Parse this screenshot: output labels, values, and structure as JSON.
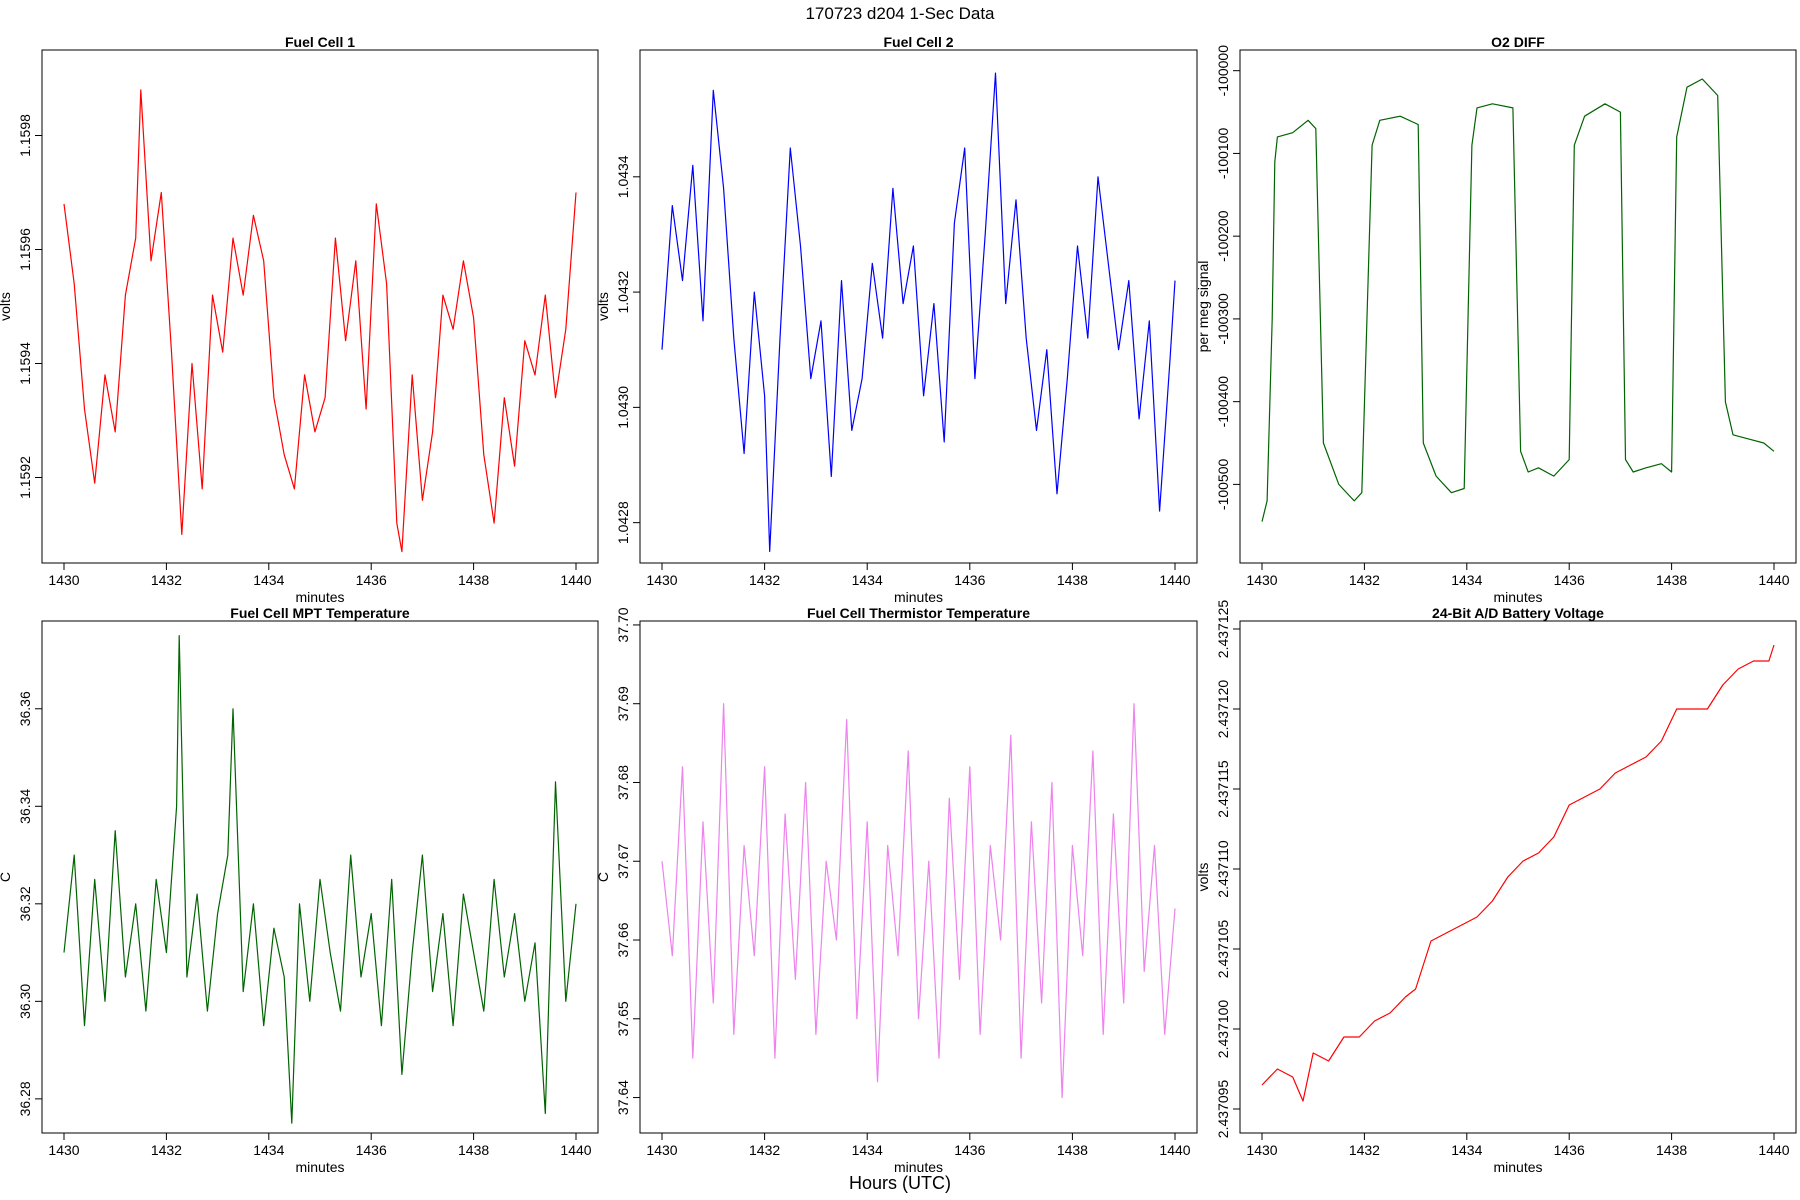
{
  "suptitle": "170723   d204   1-Sec Data",
  "footer_label": "Hours (UTC)",
  "chart_data": [
    {
      "type": "line",
      "title": "Fuel Cell 1",
      "xlabel": "minutes",
      "ylabel": "volts",
      "color": "#ff0000",
      "xlim": [
        1430,
        1440
      ],
      "ylim": [
        1.15905,
        1.15995
      ],
      "xticks": [
        1430,
        1432,
        1434,
        1436,
        1438,
        1440
      ],
      "xtick_labels": [
        "1430",
        "1432",
        "1434",
        "1436",
        "1438",
        "1440"
      ],
      "yticks": [
        1.1592,
        1.1594,
        1.1596,
        1.1598
      ],
      "ytick_labels": [
        "1.1592",
        "1.1594",
        "1.1596",
        "1.1598"
      ],
      "x": [
        1430.0,
        1430.2,
        1430.4,
        1430.6,
        1430.8,
        1431.0,
        1431.2,
        1431.4,
        1431.5,
        1431.7,
        1431.9,
        1432.1,
        1432.3,
        1432.5,
        1432.7,
        1432.9,
        1433.1,
        1433.3,
        1433.5,
        1433.7,
        1433.9,
        1434.1,
        1434.3,
        1434.5,
        1434.7,
        1434.9,
        1435.1,
        1435.3,
        1435.5,
        1435.7,
        1435.9,
        1436.1,
        1436.3,
        1436.5,
        1436.6,
        1436.8,
        1437.0,
        1437.2,
        1437.4,
        1437.6,
        1437.8,
        1438.0,
        1438.2,
        1438.4,
        1438.6,
        1438.8,
        1439.0,
        1439.2,
        1439.4,
        1439.6,
        1439.8,
        1440.0
      ],
      "y": [
        1.15968,
        1.15954,
        1.15932,
        1.15919,
        1.15938,
        1.15928,
        1.15952,
        1.15962,
        1.15988,
        1.15958,
        1.1597,
        1.15942,
        1.1591,
        1.1594,
        1.15918,
        1.15952,
        1.15942,
        1.15962,
        1.15952,
        1.15966,
        1.15958,
        1.15934,
        1.15924,
        1.15918,
        1.15938,
        1.15928,
        1.15934,
        1.15962,
        1.15944,
        1.15958,
        1.15932,
        1.15968,
        1.15954,
        1.15912,
        1.15907,
        1.15938,
        1.15916,
        1.15928,
        1.15952,
        1.15946,
        1.15958,
        1.15948,
        1.15924,
        1.15912,
        1.15934,
        1.15922,
        1.15944,
        1.15938,
        1.15952,
        1.15934,
        1.15946,
        1.1597
      ]
    },
    {
      "type": "line",
      "title": "Fuel Cell 2",
      "xlabel": "minutes",
      "ylabel": "volts",
      "color": "#0000ff",
      "xlim": [
        1430,
        1440
      ],
      "ylim": [
        1.04273,
        1.04362
      ],
      "xticks": [
        1430,
        1432,
        1434,
        1436,
        1438,
        1440
      ],
      "xtick_labels": [
        "1430",
        "1432",
        "1434",
        "1436",
        "1438",
        "1440"
      ],
      "yticks": [
        1.0428,
        1.043,
        1.0432,
        1.0434
      ],
      "ytick_labels": [
        "1.0428",
        "1.0430",
        "1.0432",
        "1.0434"
      ],
      "x": [
        1430.0,
        1430.2,
        1430.4,
        1430.6,
        1430.8,
        1431.0,
        1431.2,
        1431.4,
        1431.6,
        1431.8,
        1432.0,
        1432.1,
        1432.3,
        1432.5,
        1432.7,
        1432.9,
        1433.1,
        1433.3,
        1433.5,
        1433.7,
        1433.9,
        1434.1,
        1434.3,
        1434.5,
        1434.7,
        1434.9,
        1435.1,
        1435.3,
        1435.5,
        1435.7,
        1435.9,
        1436.1,
        1436.3,
        1436.5,
        1436.7,
        1436.9,
        1437.1,
        1437.3,
        1437.5,
        1437.7,
        1437.9,
        1438.1,
        1438.3,
        1438.5,
        1438.7,
        1438.9,
        1439.1,
        1439.3,
        1439.5,
        1439.7,
        1439.9,
        1440.0
      ],
      "y": [
        1.0431,
        1.04335,
        1.04322,
        1.04342,
        1.04315,
        1.04355,
        1.04338,
        1.04312,
        1.04292,
        1.0432,
        1.04302,
        1.04275,
        1.04312,
        1.04345,
        1.04328,
        1.04305,
        1.04315,
        1.04288,
        1.04322,
        1.04296,
        1.04305,
        1.04325,
        1.04312,
        1.04338,
        1.04318,
        1.04328,
        1.04302,
        1.04318,
        1.04294,
        1.04332,
        1.04345,
        1.04305,
        1.0433,
        1.04358,
        1.04318,
        1.04336,
        1.04312,
        1.04296,
        1.0431,
        1.04285,
        1.04305,
        1.04328,
        1.04312,
        1.0434,
        1.04325,
        1.0431,
        1.04322,
        1.04298,
        1.04315,
        1.04282,
        1.04308,
        1.04322
      ]
    },
    {
      "type": "line",
      "title": "O2 DIFF",
      "xlabel": "minutes",
      "ylabel": "per meg signal",
      "color": "#006400",
      "xlim": [
        1430,
        1440
      ],
      "ylim": [
        -100595,
        -99975
      ],
      "xticks": [
        1430,
        1432,
        1434,
        1436,
        1438,
        1440
      ],
      "xtick_labels": [
        "1430",
        "1432",
        "1434",
        "1436",
        "1438",
        "1440"
      ],
      "yticks": [
        -100500,
        -100400,
        -100300,
        -100200,
        -100100,
        -100000
      ],
      "ytick_labels": [
        "-100500",
        "-100400",
        "-100300",
        "-100200",
        "-100100",
        "-100000"
      ],
      "x": [
        1430.0,
        1430.1,
        1430.2,
        1430.25,
        1430.3,
        1430.6,
        1430.9,
        1431.05,
        1431.2,
        1431.5,
        1431.8,
        1431.95,
        1432.15,
        1432.3,
        1432.7,
        1433.05,
        1433.15,
        1433.4,
        1433.7,
        1433.95,
        1434.1,
        1434.2,
        1434.5,
        1434.9,
        1435.05,
        1435.2,
        1435.4,
        1435.7,
        1436.0,
        1436.1,
        1436.3,
        1436.7,
        1437.0,
        1437.1,
        1437.25,
        1437.5,
        1437.8,
        1438.0,
        1438.1,
        1438.3,
        1438.6,
        1438.9,
        1439.05,
        1439.2,
        1439.5,
        1439.8,
        1440.0
      ],
      "y": [
        -100545,
        -100520,
        -100300,
        -100110,
        -100080,
        -100075,
        -100060,
        -100070,
        -100450,
        -100500,
        -100520,
        -100510,
        -100090,
        -100060,
        -100055,
        -100065,
        -100450,
        -100490,
        -100510,
        -100505,
        -100090,
        -100045,
        -100040,
        -100045,
        -100460,
        -100485,
        -100480,
        -100490,
        -100470,
        -100090,
        -100055,
        -100040,
        -100050,
        -100470,
        -100485,
        -100480,
        -100475,
        -100485,
        -100080,
        -100020,
        -100010,
        -100030,
        -100400,
        -100440,
        -100445,
        -100450,
        -100460
      ]
    },
    {
      "type": "line",
      "title": "Fuel Cell MPT Temperature",
      "xlabel": "minutes",
      "ylabel": "C",
      "color": "#006400",
      "xlim": [
        1430,
        1440
      ],
      "ylim": [
        36.273,
        36.378
      ],
      "xticks": [
        1430,
        1432,
        1434,
        1436,
        1438,
        1440
      ],
      "xtick_labels": [
        "1430",
        "1432",
        "1434",
        "1436",
        "1438",
        "1440"
      ],
      "yticks": [
        36.28,
        36.3,
        36.32,
        36.34,
        36.36
      ],
      "ytick_labels": [
        "36.28",
        "36.30",
        "36.32",
        "36.34",
        "36.36"
      ],
      "x": [
        1430.0,
        1430.2,
        1430.4,
        1430.6,
        1430.8,
        1431.0,
        1431.2,
        1431.4,
        1431.6,
        1431.8,
        1432.0,
        1432.2,
        1432.25,
        1432.4,
        1432.6,
        1432.8,
        1433.0,
        1433.2,
        1433.3,
        1433.5,
        1433.7,
        1433.9,
        1434.1,
        1434.3,
        1434.45,
        1434.6,
        1434.8,
        1435.0,
        1435.2,
        1435.4,
        1435.6,
        1435.8,
        1436.0,
        1436.2,
        1436.4,
        1436.6,
        1436.8,
        1437.0,
        1437.2,
        1437.4,
        1437.6,
        1437.8,
        1438.0,
        1438.2,
        1438.4,
        1438.6,
        1438.8,
        1439.0,
        1439.2,
        1439.4,
        1439.6,
        1439.8,
        1440.0
      ],
      "y": [
        36.31,
        36.33,
        36.295,
        36.325,
        36.3,
        36.335,
        36.305,
        36.32,
        36.298,
        36.325,
        36.31,
        36.34,
        36.375,
        36.305,
        36.322,
        36.298,
        36.318,
        36.33,
        36.36,
        36.302,
        36.32,
        36.295,
        36.315,
        36.305,
        36.275,
        36.32,
        36.3,
        36.325,
        36.31,
        36.298,
        36.33,
        36.305,
        36.318,
        36.295,
        36.325,
        36.285,
        36.31,
        36.33,
        36.302,
        36.318,
        36.295,
        36.322,
        36.31,
        36.298,
        36.325,
        36.305,
        36.318,
        36.3,
        36.312,
        36.277,
        36.345,
        36.3,
        36.32
      ]
    },
    {
      "type": "line",
      "title": "Fuel Cell Thermistor Temperature",
      "xlabel": "minutes",
      "ylabel": "C",
      "color": "#ee82ee",
      "xlim": [
        1430,
        1440
      ],
      "ylim": [
        37.6355,
        37.7005
      ],
      "xticks": [
        1430,
        1432,
        1434,
        1436,
        1438,
        1440
      ],
      "xtick_labels": [
        "1430",
        "1432",
        "1434",
        "1436",
        "1438",
        "1440"
      ],
      "yticks": [
        37.64,
        37.65,
        37.66,
        37.67,
        37.68,
        37.69,
        37.7
      ],
      "ytick_labels": [
        "37.64",
        "37.65",
        "37.66",
        "37.67",
        "37.68",
        "37.69",
        "37.70"
      ],
      "x": [
        1430.0,
        1430.2,
        1430.4,
        1430.6,
        1430.8,
        1431.0,
        1431.2,
        1431.4,
        1431.6,
        1431.8,
        1432.0,
        1432.2,
        1432.4,
        1432.6,
        1432.8,
        1433.0,
        1433.2,
        1433.4,
        1433.6,
        1433.8,
        1434.0,
        1434.2,
        1434.4,
        1434.6,
        1434.8,
        1435.0,
        1435.2,
        1435.4,
        1435.6,
        1435.8,
        1436.0,
        1436.2,
        1436.4,
        1436.6,
        1436.8,
        1437.0,
        1437.2,
        1437.4,
        1437.6,
        1437.8,
        1438.0,
        1438.2,
        1438.4,
        1438.6,
        1438.8,
        1439.0,
        1439.2,
        1439.4,
        1439.6,
        1439.8,
        1440.0
      ],
      "y": [
        37.67,
        37.658,
        37.682,
        37.645,
        37.675,
        37.652,
        37.69,
        37.648,
        37.672,
        37.658,
        37.682,
        37.645,
        37.676,
        37.655,
        37.68,
        37.648,
        37.67,
        37.66,
        37.688,
        37.65,
        37.675,
        37.642,
        37.672,
        37.658,
        37.684,
        37.65,
        37.67,
        37.645,
        37.678,
        37.655,
        37.682,
        37.648,
        37.672,
        37.66,
        37.686,
        37.645,
        37.675,
        37.652,
        37.68,
        37.64,
        37.672,
        37.658,
        37.684,
        37.648,
        37.676,
        37.652,
        37.69,
        37.656,
        37.672,
        37.648,
        37.664
      ]
    },
    {
      "type": "line",
      "title": "24-Bit A/D Battery Voltage",
      "xlabel": "minutes",
      "ylabel": "volts",
      "color": "#ff0000",
      "xlim": [
        1430,
        1440
      ],
      "ylim": [
        2.4370935,
        2.4371255
      ],
      "xticks": [
        1430,
        1432,
        1434,
        1436,
        1438,
        1440
      ],
      "xtick_labels": [
        "1430",
        "1432",
        "1434",
        "1436",
        "1438",
        "1440"
      ],
      "yticks": [
        2.437095,
        2.4371,
        2.437105,
        2.43711,
        2.437115,
        2.43712,
        2.437125
      ],
      "ytick_labels": [
        "2.437095",
        "2.437100",
        "2.437105",
        "2.437110",
        "2.437115",
        "2.437120",
        "2.437125"
      ],
      "x": [
        1430.0,
        1430.3,
        1430.6,
        1430.8,
        1431.0,
        1431.3,
        1431.6,
        1431.9,
        1432.2,
        1432.5,
        1432.8,
        1433.0,
        1433.3,
        1433.6,
        1433.9,
        1434.2,
        1434.5,
        1434.8,
        1435.1,
        1435.4,
        1435.7,
        1436.0,
        1436.3,
        1436.6,
        1436.9,
        1437.2,
        1437.5,
        1437.8,
        1438.1,
        1438.4,
        1438.7,
        1439.0,
        1439.3,
        1439.6,
        1439.9,
        1440.0
      ],
      "y": [
        2.4370965,
        2.4370975,
        2.437097,
        2.4370955,
        2.4370985,
        2.437098,
        2.4370995,
        2.4370995,
        2.4371005,
        2.437101,
        2.437102,
        2.4371025,
        2.4371055,
        2.437106,
        2.4371065,
        2.437107,
        2.437108,
        2.4371095,
        2.4371105,
        2.437111,
        2.437112,
        2.437114,
        2.4371145,
        2.437115,
        2.437116,
        2.4371165,
        2.437117,
        2.437118,
        2.43712,
        2.43712,
        2.43712,
        2.4371215,
        2.4371225,
        2.437123,
        2.437123,
        2.437124
      ]
    }
  ]
}
